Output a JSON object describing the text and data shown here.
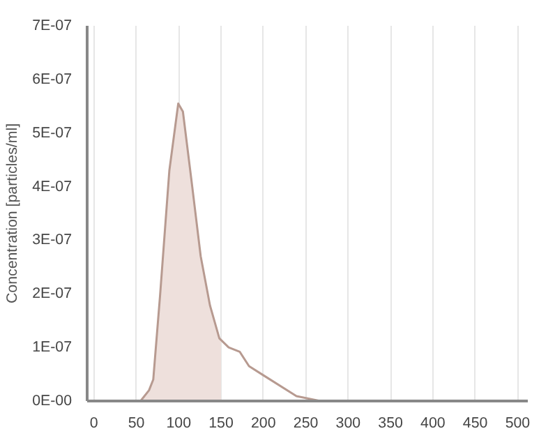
{
  "chart_data": {
    "type": "line",
    "ylabel": "Concentration [particles/ml]",
    "xlim": [
      -8,
      512
    ],
    "xticks": [
      0,
      50,
      100,
      150,
      200,
      250,
      300,
      350,
      400,
      450,
      500
    ],
    "ylim": [
      0,
      7e-07
    ],
    "yticks": [
      {
        "value": 0,
        "label": "0E-00"
      },
      {
        "value": 1e-07,
        "label": "1E-07"
      },
      {
        "value": 2e-07,
        "label": "2E-07"
      },
      {
        "value": 3e-07,
        "label": "3E-07"
      },
      {
        "value": 4e-07,
        "label": "4E-07"
      },
      {
        "value": 5e-07,
        "label": "5E-07"
      },
      {
        "value": 6e-07,
        "label": "6E-07"
      },
      {
        "value": 7e-07,
        "label": "7E-07"
      }
    ],
    "grid": "x",
    "marker": "none",
    "line_style": "solid",
    "series": [
      {
        "type": "area",
        "color": "#eee0dc",
        "x": [
          50,
          55,
          65,
          70,
          78,
          89,
          99.5,
          105,
          116,
          126,
          137,
          148,
          150
        ],
        "values": [
          0,
          0,
          2e-08,
          4e-08,
          1.96e-07,
          4.3e-07,
          5.55e-07,
          5.4e-07,
          4e-07,
          2.7e-07,
          1.78e-07,
          1.17e-07,
          1.12e-07
        ]
      },
      {
        "color": "#b79a90",
        "x": [
          0,
          50,
          55,
          65,
          70,
          78,
          89,
          99.5,
          105,
          116,
          126,
          137,
          148,
          159,
          172,
          183,
          200,
          239,
          267,
          510
        ],
        "values": [
          0,
          0,
          0,
          2e-08,
          4e-08,
          1.96e-07,
          4.3e-07,
          5.55e-07,
          5.4e-07,
          4e-07,
          2.7e-07,
          1.78e-07,
          1.17e-07,
          1e-07,
          9.2e-08,
          6.5e-08,
          4.8e-08,
          9e-09,
          0,
          0
        ]
      }
    ]
  }
}
